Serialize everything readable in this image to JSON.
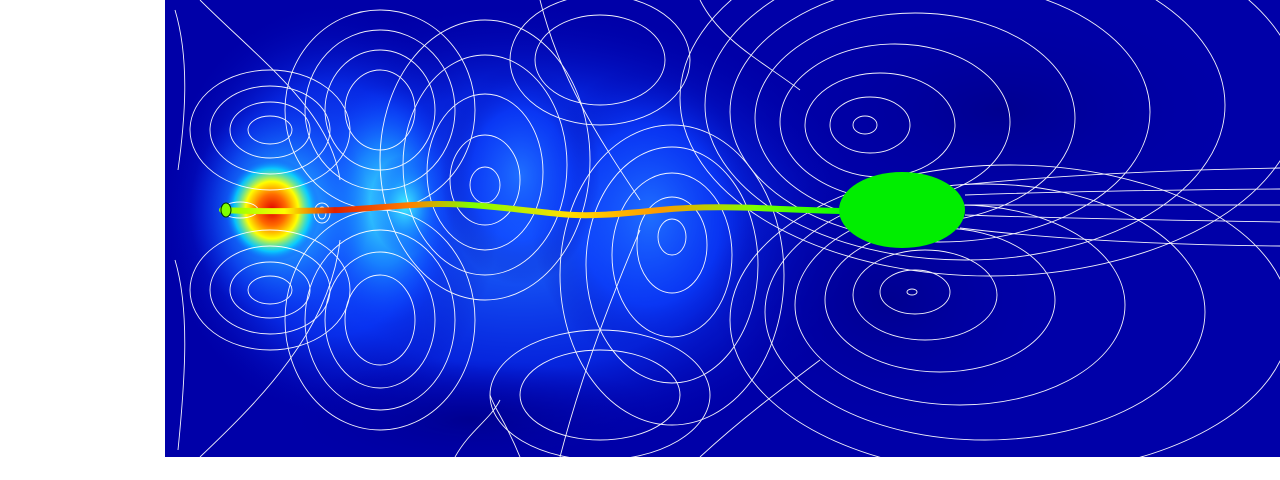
{
  "scene": {
    "description_key": "simulation-frame",
    "background_color": "#ffffff",
    "field_base_color": "#0000a8",
    "field_mid_color": "#0a3cff",
    "highlight_colors": [
      "#00e5ff",
      "#ffff00",
      "#ff6a00",
      "#e00000"
    ],
    "streamline_color": "#ffffff",
    "body_color": "#00ee00",
    "filament_colors": [
      "#7fff00",
      "#ffff00",
      "#ff7f00",
      "#e02000",
      "#00ff00"
    ]
  }
}
